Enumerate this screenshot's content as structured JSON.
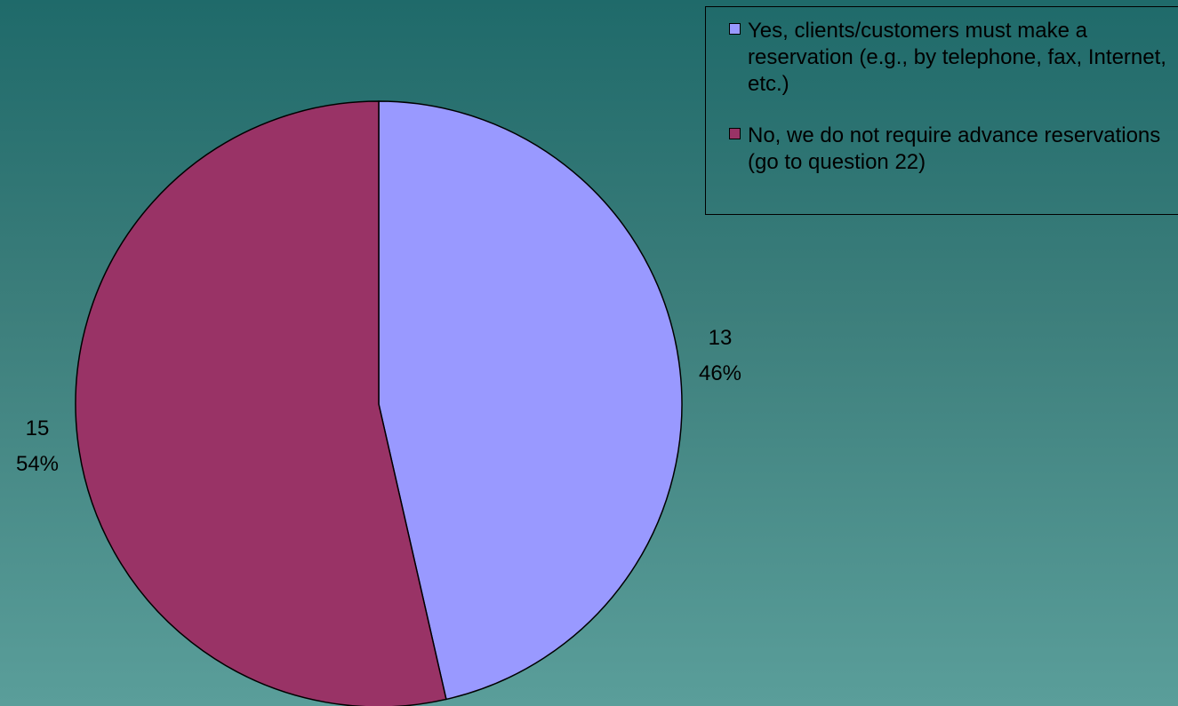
{
  "chart_data": {
    "type": "pie",
    "title": "",
    "slices": [
      {
        "label": "Yes, clients/customers must make a reservation (e.g., by telephone, fax, Internet, etc.)",
        "value": 13,
        "percent_label": "46%",
        "color": "#9999ff"
      },
      {
        "label": "No, we do not require advance reservations (go to question 22)",
        "value": 15,
        "percent_label": "54%",
        "color": "#993366"
      }
    ],
    "start_angle": "12 o'clock",
    "direction": "clockwise",
    "legend_position": "top-right"
  }
}
